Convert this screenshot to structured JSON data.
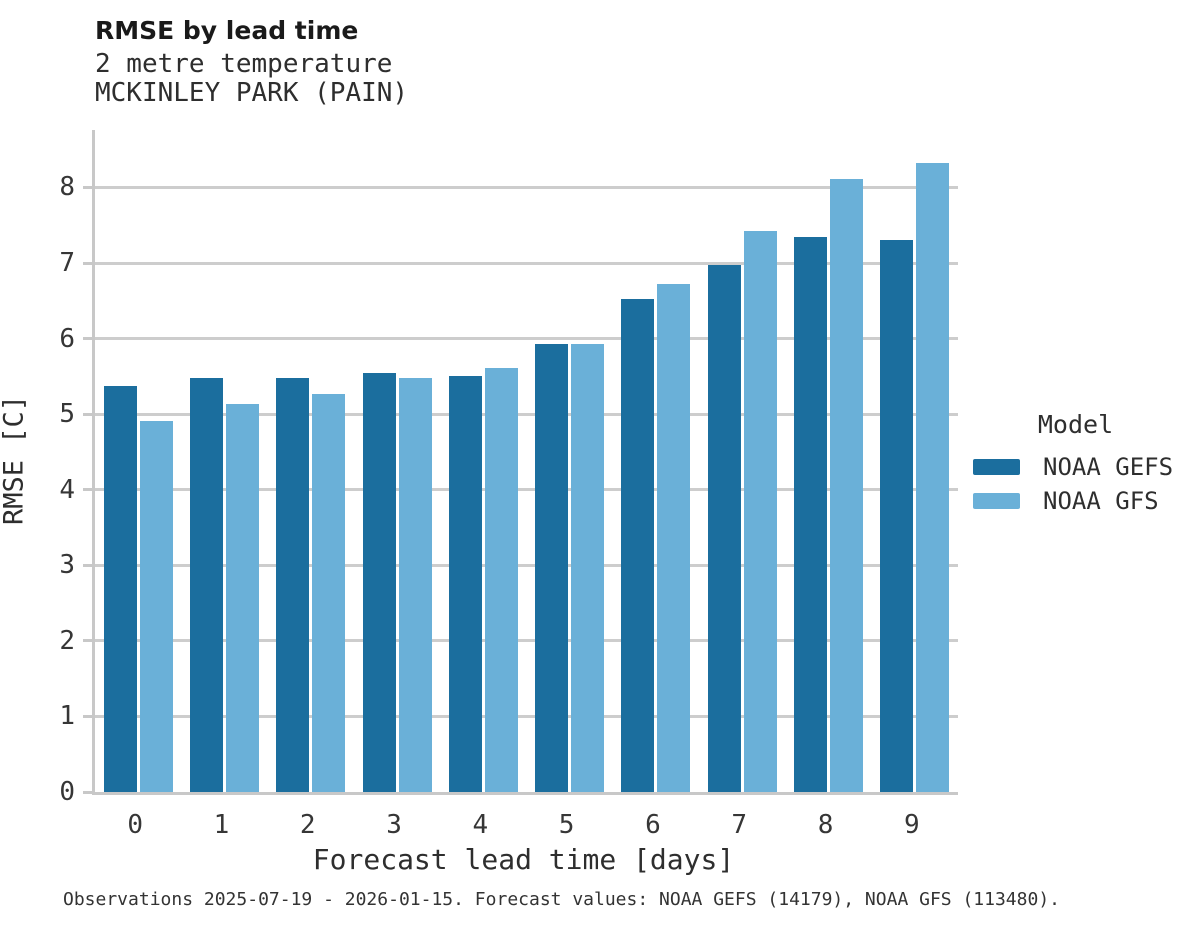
{
  "header": {
    "title": "RMSE by lead time",
    "subtitle1": "2 metre temperature",
    "subtitle2": "MCKINLEY PARK (PAIN)"
  },
  "caption": "Observations 2025-07-19 - 2026-01-15. Forecast values: NOAA GEFS (14179), NOAA GFS (113480).",
  "colors": {
    "gefs_dark_blue": "#1b6e9e",
    "gfs_light_blue": "#6ab0d8",
    "gridline": "#cdcdcd",
    "spine": "#c8c8c8",
    "text": "#333333"
  },
  "chart_data": {
    "type": "bar",
    "title": "RMSE by lead time",
    "subtitle": [
      "2 metre temperature",
      "MCKINLEY PARK (PAIN)"
    ],
    "xlabel": "Forecast lead time [days]",
    "ylabel": "RMSE [C]",
    "categories": [
      "0",
      "1",
      "2",
      "3",
      "4",
      "5",
      "6",
      "7",
      "8",
      "9"
    ],
    "series": [
      {
        "name": "NOAA GEFS",
        "color": "#1b6e9e",
        "values": [
          5.37,
          5.48,
          5.48,
          5.55,
          5.51,
          5.93,
          6.53,
          6.97,
          7.35,
          7.31
        ]
      },
      {
        "name": "NOAA GFS",
        "color": "#6ab0d8",
        "values": [
          4.91,
          5.14,
          5.27,
          5.48,
          5.61,
          5.93,
          6.72,
          7.43,
          8.11,
          8.32
        ]
      }
    ],
    "ylim": [
      0,
      8.76
    ],
    "yticks": [
      0,
      1,
      2,
      3,
      4,
      5,
      6,
      7,
      8
    ],
    "grid": "horizontal-gridlines",
    "legend": {
      "title": "Model",
      "position": "right"
    }
  }
}
